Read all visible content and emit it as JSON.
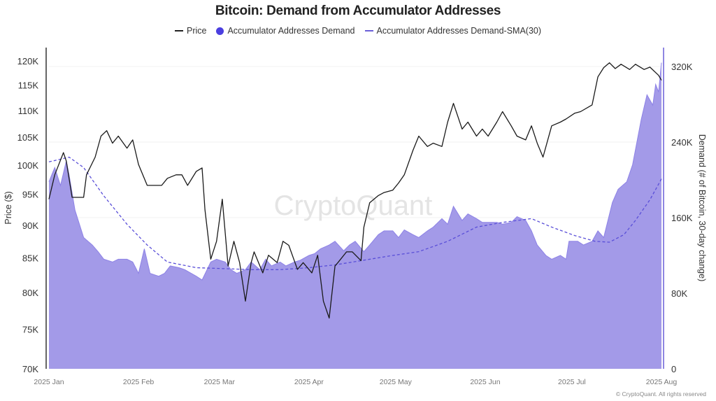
{
  "chart_data": {
    "type": "line",
    "title": "Bitcoin: Demand from Accumulator Addresses",
    "watermark": "CryptoQuant",
    "copyright": "© CryptoQuant. All rights reserved",
    "legend_position": "top-center",
    "x_unit": "days since 2025-01-01",
    "x_ticks": [
      {
        "day": 0,
        "label": "2025 Jan"
      },
      {
        "day": 31,
        "label": "2025 Feb"
      },
      {
        "day": 59,
        "label": "2025 Mar"
      },
      {
        "day": 90,
        "label": "2025 Apr"
      },
      {
        "day": 120,
        "label": "2025 May"
      },
      {
        "day": 151,
        "label": "2025 Jun"
      },
      {
        "day": 181,
        "label": "2025 Jul"
      },
      {
        "day": 212,
        "label": "2025 Aug"
      }
    ],
    "xlim": [
      0,
      212
    ],
    "y_left": {
      "label": "Price ($)",
      "scale": "log",
      "range": [
        70,
        120
      ],
      "ticks": [
        {
          "v": 70,
          "label": "70K"
        },
        {
          "v": 75,
          "label": "75K"
        },
        {
          "v": 80,
          "label": "80K"
        },
        {
          "v": 85,
          "label": "85K"
        },
        {
          "v": 90,
          "label": "90K"
        },
        {
          "v": 95,
          "label": "95K"
        },
        {
          "v": 100,
          "label": "100K"
        },
        {
          "v": 105,
          "label": "105K"
        },
        {
          "v": 110,
          "label": "110K"
        },
        {
          "v": 115,
          "label": "115K"
        },
        {
          "v": 120,
          "label": "120K"
        }
      ]
    },
    "y_right": {
      "label": "Demand (# of Bitcoin, 30-day change)",
      "scale": "linear",
      "range": [
        0,
        340
      ],
      "ticks": [
        {
          "v": 0,
          "label": "0"
        },
        {
          "v": 80,
          "label": "80K"
        },
        {
          "v": 160,
          "label": "160K"
        },
        {
          "v": 240,
          "label": "240K"
        },
        {
          "v": 320,
          "label": "320K"
        }
      ]
    },
    "series": [
      {
        "name": "Price",
        "axis": "left",
        "unit": "K USD",
        "color": "#1a1a1a",
        "style": "line",
        "points": [
          [
            0,
            94.2
          ],
          [
            2,
            98.3
          ],
          [
            5,
            102.2
          ],
          [
            6,
            100.7
          ],
          [
            8,
            94.5
          ],
          [
            12,
            94.5
          ],
          [
            13,
            98.3
          ],
          [
            16,
            101.4
          ],
          [
            18,
            105.2
          ],
          [
            20,
            106.2
          ],
          [
            22,
            103.9
          ],
          [
            24,
            105.2
          ],
          [
            27,
            103.0
          ],
          [
            29,
            104.5
          ],
          [
            31,
            100.1
          ],
          [
            34,
            96.5
          ],
          [
            36,
            96.5
          ],
          [
            39,
            96.5
          ],
          [
            41,
            97.7
          ],
          [
            44,
            98.3
          ],
          [
            46,
            98.3
          ],
          [
            48,
            96.5
          ],
          [
            51,
            98.9
          ],
          [
            53,
            99.5
          ],
          [
            54,
            92.5
          ],
          [
            56,
            84.8
          ],
          [
            58,
            87.5
          ],
          [
            60,
            94.2
          ],
          [
            62,
            83.8
          ],
          [
            64,
            87.5
          ],
          [
            66,
            84.3
          ],
          [
            68,
            78.8
          ],
          [
            70,
            84.3
          ],
          [
            71,
            85.9
          ],
          [
            74,
            82.8
          ],
          [
            76,
            85.4
          ],
          [
            79,
            84.3
          ],
          [
            81,
            87.5
          ],
          [
            83,
            86.9
          ],
          [
            86,
            83.3
          ],
          [
            88,
            84.3
          ],
          [
            91,
            82.8
          ],
          [
            93,
            85.4
          ],
          [
            95,
            78.8
          ],
          [
            97,
            76.5
          ],
          [
            99,
            83.8
          ],
          [
            100,
            84.3
          ],
          [
            103,
            85.9
          ],
          [
            105,
            85.9
          ],
          [
            108,
            84.6
          ],
          [
            109,
            89.7
          ],
          [
            111,
            93.6
          ],
          [
            114,
            94.8
          ],
          [
            116,
            95.3
          ],
          [
            119,
            95.7
          ],
          [
            121,
            96.9
          ],
          [
            123,
            98.3
          ],
          [
            126,
            102.6
          ],
          [
            128,
            105.2
          ],
          [
            131,
            103.3
          ],
          [
            133,
            103.9
          ],
          [
            136,
            103.3
          ],
          [
            138,
            107.8
          ],
          [
            140,
            111.4
          ],
          [
            143,
            106.5
          ],
          [
            145,
            107.8
          ],
          [
            148,
            105.2
          ],
          [
            150,
            106.5
          ],
          [
            152,
            105.2
          ],
          [
            155,
            107.8
          ],
          [
            157,
            109.8
          ],
          [
            160,
            107.1
          ],
          [
            162,
            105.2
          ],
          [
            165,
            104.5
          ],
          [
            167,
            107.1
          ],
          [
            169,
            103.9
          ],
          [
            171,
            101.4
          ],
          [
            174,
            107.1
          ],
          [
            177,
            107.8
          ],
          [
            179,
            108.4
          ],
          [
            182,
            109.5
          ],
          [
            184,
            109.8
          ],
          [
            188,
            111.1
          ],
          [
            190,
            116.7
          ],
          [
            192,
            118.6
          ],
          [
            194,
            119.6
          ],
          [
            196,
            118.4
          ],
          [
            198,
            119.3
          ],
          [
            201,
            118.2
          ],
          [
            203,
            119.3
          ],
          [
            206,
            118.2
          ],
          [
            208,
            118.7
          ],
          [
            211,
            117.0
          ],
          [
            212,
            116.0
          ]
        ]
      },
      {
        "name": "Accumulator Addresses Demand",
        "axis": "right",
        "unit": "K BTC",
        "color": "#4b3fe0",
        "fill": "#a39ae8",
        "style": "area",
        "points": [
          [
            0,
            198
          ],
          [
            2,
            213
          ],
          [
            4,
            194
          ],
          [
            6,
            220
          ],
          [
            7,
            205
          ],
          [
            9,
            168
          ],
          [
            12,
            139
          ],
          [
            15,
            131
          ],
          [
            17,
            124
          ],
          [
            19,
            116
          ],
          [
            22,
            113
          ],
          [
            24,
            116
          ],
          [
            27,
            116
          ],
          [
            29,
            113
          ],
          [
            31,
            101
          ],
          [
            33,
            127
          ],
          [
            35,
            101
          ],
          [
            38,
            98
          ],
          [
            40,
            101
          ],
          [
            42,
            109
          ],
          [
            45,
            107
          ],
          [
            47,
            105
          ],
          [
            51,
            98
          ],
          [
            53,
            94
          ],
          [
            56,
            113
          ],
          [
            58,
            116
          ],
          [
            61,
            113
          ],
          [
            63,
            105
          ],
          [
            65,
            101
          ],
          [
            68,
            105
          ],
          [
            70,
            113
          ],
          [
            73,
            105
          ],
          [
            75,
            116
          ],
          [
            77,
            109
          ],
          [
            80,
            113
          ],
          [
            82,
            109
          ],
          [
            85,
            113
          ],
          [
            87,
            115
          ],
          [
            90,
            120
          ],
          [
            92,
            122
          ],
          [
            94,
            127
          ],
          [
            97,
            131
          ],
          [
            99,
            135
          ],
          [
            102,
            125
          ],
          [
            104,
            131
          ],
          [
            106,
            135
          ],
          [
            109,
            124
          ],
          [
            111,
            131
          ],
          [
            114,
            142
          ],
          [
            116,
            146
          ],
          [
            119,
            146
          ],
          [
            121,
            139
          ],
          [
            123,
            147
          ],
          [
            126,
            142
          ],
          [
            128,
            139
          ],
          [
            131,
            146
          ],
          [
            133,
            150
          ],
          [
            136,
            159
          ],
          [
            138,
            153
          ],
          [
            140,
            172
          ],
          [
            143,
            157
          ],
          [
            145,
            164
          ],
          [
            148,
            159
          ],
          [
            150,
            155
          ],
          [
            152,
            155
          ],
          [
            155,
            155
          ],
          [
            157,
            153
          ],
          [
            160,
            155
          ],
          [
            162,
            161
          ],
          [
            165,
            157
          ],
          [
            167,
            146
          ],
          [
            169,
            131
          ],
          [
            172,
            120
          ],
          [
            174,
            116
          ],
          [
            177,
            120
          ],
          [
            179,
            116
          ],
          [
            180,
            135
          ],
          [
            183,
            135
          ],
          [
            185,
            131
          ],
          [
            188,
            135
          ],
          [
            190,
            146
          ],
          [
            192,
            139
          ],
          [
            195,
            176
          ],
          [
            197,
            190
          ],
          [
            200,
            198
          ],
          [
            202,
            216
          ],
          [
            205,
            264
          ],
          [
            207,
            290
          ],
          [
            209,
            279
          ],
          [
            210,
            301
          ],
          [
            211,
            293
          ],
          [
            212,
            324
          ]
        ]
      },
      {
        "name": "Accumulator Addresses Demand-SMA(30)",
        "axis": "right",
        "unit": "K BTC",
        "color": "#5a4fd8",
        "style": "dashed",
        "points": [
          [
            0,
            219
          ],
          [
            7,
            224
          ],
          [
            12,
            213
          ],
          [
            19,
            183
          ],
          [
            27,
            153
          ],
          [
            34,
            131
          ],
          [
            41,
            113
          ],
          [
            51,
            107
          ],
          [
            61,
            106
          ],
          [
            70,
            105
          ],
          [
            80,
            105
          ],
          [
            90,
            107
          ],
          [
            99,
            110
          ],
          [
            109,
            115
          ],
          [
            119,
            120
          ],
          [
            128,
            124
          ],
          [
            138,
            135
          ],
          [
            148,
            150
          ],
          [
            157,
            155
          ],
          [
            167,
            159
          ],
          [
            174,
            150
          ],
          [
            182,
            141
          ],
          [
            189,
            135
          ],
          [
            194,
            134
          ],
          [
            199,
            142
          ],
          [
            203,
            157
          ],
          [
            208,
            179
          ],
          [
            212,
            201
          ]
        ]
      }
    ]
  }
}
